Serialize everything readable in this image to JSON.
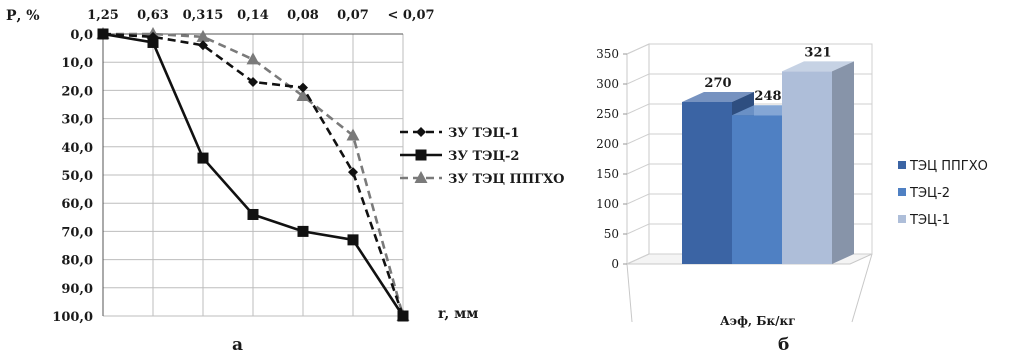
{
  "panel_labels": [
    "а",
    "б"
  ],
  "chart_data": [
    {
      "type": "line",
      "ylabel": "Р, %",
      "xlabel": "r, мм",
      "x_ticks": [
        "1,25",
        "0,63",
        "0,315",
        "0,14",
        "0,08",
        "0,07",
        "< 0,07"
      ],
      "y_ticks": [
        "0,0",
        "10,0",
        "20,0",
        "30,0",
        "40,0",
        "50,0",
        "60,0",
        "70,0",
        "80,0",
        "90,0",
        "100,0"
      ],
      "ylim": [
        0,
        100
      ],
      "y_inverted": true,
      "x_axis_position": "top",
      "grid": true,
      "legend_position": "right",
      "series": [
        {
          "name": "ЗУ ТЭЦ-1",
          "marker": "diamond",
          "style": "dashed",
          "color": "#111111",
          "values": [
            0,
            1,
            4,
            17,
            19,
            49,
            100
          ]
        },
        {
          "name": "ЗУ ТЭЦ-2",
          "marker": "square",
          "style": "solid",
          "color": "#111111",
          "values": [
            0,
            3,
            44,
            64,
            70,
            73,
            100
          ]
        },
        {
          "name": "ЗУ ТЭЦ ППГХО",
          "marker": "triangle",
          "style": "dashed",
          "color": "#7a7a7a",
          "values": [
            0,
            0,
            1,
            9,
            22,
            36,
            100
          ]
        }
      ]
    },
    {
      "type": "bar",
      "style": "3d",
      "xlabel": "Аэф, Бк/кг",
      "y_ticks": [
        "0",
        "50",
        "100",
        "150",
        "200",
        "250",
        "300",
        "350"
      ],
      "ylim": [
        0,
        350
      ],
      "grid": true,
      "legend_position": "right",
      "series": [
        {
          "name": "ТЭЦ ППГХО",
          "value": 270,
          "label": "270",
          "color": "#3b64a4"
        },
        {
          "name": "ТЭЦ-2",
          "value": 248,
          "label": "248",
          "color": "#4f80c3"
        },
        {
          "name": "ТЭЦ-1",
          "value": 321,
          "label": "321",
          "color": "#aebed9"
        }
      ],
      "legend_order": [
        "ТЭЦ ППГХО",
        "ТЭЦ-2",
        "ТЭЦ-1"
      ]
    }
  ]
}
